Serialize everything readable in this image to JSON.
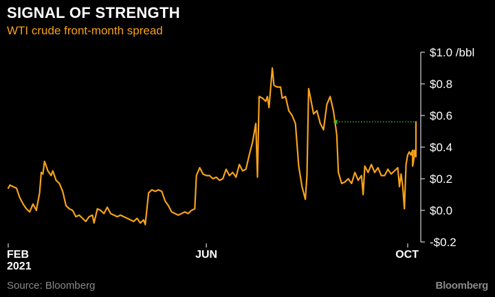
{
  "chart_data": {
    "type": "line",
    "title": "SIGNAL OF STRENGTH",
    "subtitle": "WTI crude front-month spread",
    "ylim": [
      -0.2,
      1.0
    ],
    "y_ticks": [
      {
        "value": 1.0,
        "label": "$1.0 /bbl"
      },
      {
        "value": 0.8,
        "label": "$0.8"
      },
      {
        "value": 0.6,
        "label": "$0.6"
      },
      {
        "value": 0.4,
        "label": "$0.4"
      },
      {
        "value": 0.2,
        "label": "$0.2"
      },
      {
        "value": 0.0,
        "label": "$0.0"
      },
      {
        "value": -0.2,
        "label": "-$0.2"
      }
    ],
    "xlim": [
      "2021-02-01",
      "2021-10-06"
    ],
    "x_ticks": [
      {
        "x": "2021-02-01",
        "label": "FEB",
        "sublabel": "2021"
      },
      {
        "x": "2021-06-01",
        "label": "JUN",
        "sublabel": ""
      },
      {
        "x": "2021-10-01",
        "label": "OCT",
        "sublabel": ""
      }
    ],
    "series": [
      {
        "name": "",
        "color": "#f7a21b",
        "points": [
          [
            "2021-02-01",
            0.14
          ],
          [
            "2021-02-02",
            0.16
          ],
          [
            "2021-02-04",
            0.15
          ],
          [
            "2021-02-06",
            0.14
          ],
          [
            "2021-02-08",
            0.08
          ],
          [
            "2021-02-10",
            0.04
          ],
          [
            "2021-02-12",
            0.01
          ],
          [
            "2021-02-14",
            -0.01
          ],
          [
            "2021-02-16",
            0.04
          ],
          [
            "2021-02-18",
            0.0
          ],
          [
            "2021-02-20",
            0.11
          ],
          [
            "2021-02-21",
            0.24
          ],
          [
            "2021-02-22",
            0.23
          ],
          [
            "2021-02-23",
            0.31
          ],
          [
            "2021-02-25",
            0.25
          ],
          [
            "2021-02-27",
            0.22
          ],
          [
            "2021-02-28",
            0.25
          ],
          [
            "2021-03-02",
            0.19
          ],
          [
            "2021-03-04",
            0.17
          ],
          [
            "2021-03-06",
            0.12
          ],
          [
            "2021-03-08",
            0.03
          ],
          [
            "2021-03-10",
            0.01
          ],
          [
            "2021-03-12",
            0.0
          ],
          [
            "2021-03-14",
            -0.04
          ],
          [
            "2021-03-16",
            -0.03
          ],
          [
            "2021-03-18",
            -0.05
          ],
          [
            "2021-03-20",
            -0.07
          ],
          [
            "2021-03-22",
            -0.04
          ],
          [
            "2021-03-24",
            -0.03
          ],
          [
            "2021-03-25",
            -0.08
          ],
          [
            "2021-03-27",
            0.01
          ],
          [
            "2021-03-29",
            0.0
          ],
          [
            "2021-03-31",
            -0.02
          ],
          [
            "2021-04-02",
            0.02
          ],
          [
            "2021-04-04",
            -0.02
          ],
          [
            "2021-04-06",
            -0.03
          ],
          [
            "2021-04-08",
            -0.04
          ],
          [
            "2021-04-10",
            -0.03
          ],
          [
            "2021-04-12",
            -0.04
          ],
          [
            "2021-04-14",
            -0.05
          ],
          [
            "2021-04-16",
            -0.06
          ],
          [
            "2021-04-18",
            -0.07
          ],
          [
            "2021-04-20",
            -0.05
          ],
          [
            "2021-04-22",
            -0.08
          ],
          [
            "2021-04-24",
            -0.06
          ],
          [
            "2021-04-25",
            -0.09
          ],
          [
            "2021-04-27",
            0.11
          ],
          [
            "2021-04-29",
            0.13
          ],
          [
            "2021-05-01",
            0.12
          ],
          [
            "2021-05-03",
            0.13
          ],
          [
            "2021-05-05",
            0.12
          ],
          [
            "2021-05-07",
            0.06
          ],
          [
            "2021-05-09",
            0.03
          ],
          [
            "2021-05-11",
            -0.01
          ],
          [
            "2021-05-13",
            -0.02
          ],
          [
            "2021-05-15",
            -0.03
          ],
          [
            "2021-05-17",
            -0.02
          ],
          [
            "2021-05-19",
            -0.01
          ],
          [
            "2021-05-21",
            -0.02
          ],
          [
            "2021-05-23",
            0.0
          ],
          [
            "2021-05-25",
            0.01
          ],
          [
            "2021-05-26",
            0.22
          ],
          [
            "2021-05-28",
            0.27
          ],
          [
            "2021-05-30",
            0.23
          ],
          [
            "2021-06-01",
            0.22
          ],
          [
            "2021-06-03",
            0.22
          ],
          [
            "2021-06-05",
            0.2
          ],
          [
            "2021-06-07",
            0.21
          ],
          [
            "2021-06-09",
            0.19
          ],
          [
            "2021-06-11",
            0.2
          ],
          [
            "2021-06-13",
            0.26
          ],
          [
            "2021-06-15",
            0.22
          ],
          [
            "2021-06-17",
            0.24
          ],
          [
            "2021-06-19",
            0.21
          ],
          [
            "2021-06-21",
            0.29
          ],
          [
            "2021-06-23",
            0.25
          ],
          [
            "2021-06-25",
            0.26
          ],
          [
            "2021-06-27",
            0.35
          ],
          [
            "2021-06-29",
            0.43
          ],
          [
            "2021-07-01",
            0.55
          ],
          [
            "2021-07-02",
            0.21
          ],
          [
            "2021-07-03",
            0.72
          ],
          [
            "2021-07-05",
            0.71
          ],
          [
            "2021-07-07",
            0.69
          ],
          [
            "2021-07-08",
            0.72
          ],
          [
            "2021-07-09",
            0.65
          ],
          [
            "2021-07-11",
            0.9
          ],
          [
            "2021-07-12",
            0.79
          ],
          [
            "2021-07-14",
            0.78
          ],
          [
            "2021-07-16",
            0.78
          ],
          [
            "2021-07-17",
            0.71
          ],
          [
            "2021-07-19",
            0.72
          ],
          [
            "2021-07-21",
            0.63
          ],
          [
            "2021-07-23",
            0.6
          ],
          [
            "2021-07-25",
            0.55
          ],
          [
            "2021-07-27",
            0.28
          ],
          [
            "2021-07-29",
            0.15
          ],
          [
            "2021-07-31",
            0.07
          ],
          [
            "2021-08-01",
            0.22
          ],
          [
            "2021-08-02",
            0.77
          ],
          [
            "2021-08-03",
            0.72
          ],
          [
            "2021-08-05",
            0.61
          ],
          [
            "2021-08-07",
            0.63
          ],
          [
            "2021-08-09",
            0.55
          ],
          [
            "2021-08-11",
            0.51
          ],
          [
            "2021-08-13",
            0.67
          ],
          [
            "2021-08-15",
            0.72
          ],
          [
            "2021-08-17",
            0.63
          ],
          [
            "2021-08-19",
            0.48
          ],
          [
            "2021-08-20",
            0.24
          ],
          [
            "2021-08-22",
            0.17
          ],
          [
            "2021-08-24",
            0.18
          ],
          [
            "2021-08-26",
            0.2
          ],
          [
            "2021-08-28",
            0.17
          ],
          [
            "2021-08-30",
            0.24
          ],
          [
            "2021-09-01",
            0.19
          ],
          [
            "2021-09-03",
            0.22
          ],
          [
            "2021-09-04",
            0.1
          ],
          [
            "2021-09-05",
            0.28
          ],
          [
            "2021-09-07",
            0.24
          ],
          [
            "2021-09-09",
            0.29
          ],
          [
            "2021-09-11",
            0.24
          ],
          [
            "2021-09-13",
            0.27
          ],
          [
            "2021-09-15",
            0.22
          ],
          [
            "2021-09-17",
            0.22
          ],
          [
            "2021-09-19",
            0.26
          ],
          [
            "2021-09-21",
            0.23
          ],
          [
            "2021-09-23",
            0.25
          ],
          [
            "2021-09-25",
            0.27
          ],
          [
            "2021-09-26",
            0.15
          ],
          [
            "2021-09-27",
            0.23
          ],
          [
            "2021-09-28",
            0.15
          ],
          [
            "2021-09-29",
            0.01
          ],
          [
            "2021-09-30",
            0.29
          ],
          [
            "2021-10-01",
            0.35
          ],
          [
            "2021-10-02",
            0.37
          ],
          [
            "2021-10-03",
            0.35
          ],
          [
            "2021-10-04",
            0.38
          ],
          [
            "2021-10-04",
            0.28
          ],
          [
            "2021-10-05",
            0.34
          ],
          [
            "2021-10-05",
            0.38
          ],
          [
            "2021-10-06",
            0.34
          ],
          [
            "2021-10-06",
            0.56
          ]
        ]
      }
    ],
    "annotations": [
      {
        "type": "dotted-arrow",
        "color": "#2fbf3a",
        "y": 0.56,
        "x_from": "2021-10-05",
        "x_to": "2021-08-18"
      }
    ]
  },
  "source_note": "Source: Bloomberg",
  "brand": "Bloomberg",
  "colors": {
    "background": "#000000",
    "line": "#f7a21b",
    "text": "#ffffff",
    "muted": "#8a8a8a",
    "arrow": "#2fbf3a"
  }
}
